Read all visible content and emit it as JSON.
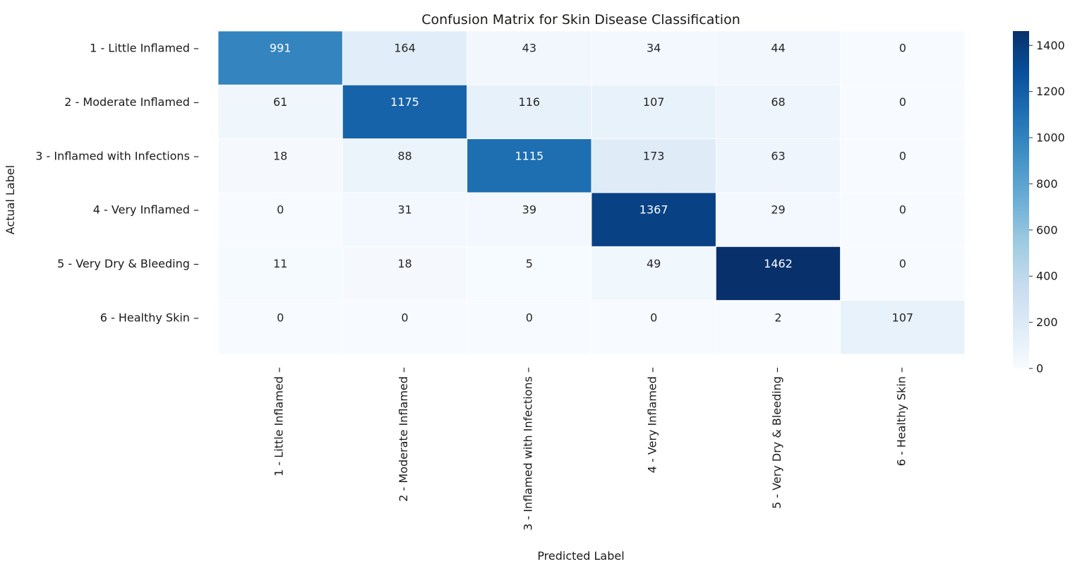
{
  "chart_data": {
    "type": "heatmap",
    "title": "Confusion Matrix for Skin Disease Classification",
    "xlabel": "Predicted Label",
    "ylabel": "Actual Label",
    "row_labels": [
      "1 - Little Inflamed",
      "2 - Moderate Inflamed",
      "3 - Inflamed with Infections",
      "4 - Very Inflamed",
      "5 - Very Dry & Bleeding",
      "6 - Healthy Skin"
    ],
    "col_labels": [
      "1 - Little Inflamed",
      "2 - Moderate Inflamed",
      "3 - Inflamed with Infections",
      "4 - Very Inflamed",
      "5 - Very Dry & Bleeding",
      "6 - Healthy Skin"
    ],
    "values": [
      [
        991,
        164,
        43,
        34,
        44,
        0
      ],
      [
        61,
        1175,
        116,
        107,
        68,
        0
      ],
      [
        18,
        88,
        1115,
        173,
        63,
        0
      ],
      [
        0,
        31,
        39,
        1367,
        29,
        0
      ],
      [
        11,
        18,
        5,
        49,
        1462,
        0
      ],
      [
        0,
        0,
        0,
        0,
        2,
        107
      ]
    ],
    "colormap": "Blues",
    "vmin": 0,
    "vmax": 1462,
    "colorbar_ticks": [
      0,
      200,
      400,
      600,
      800,
      1000,
      1200,
      1400
    ],
    "colorbar_tick_labels": [
      "0",
      "200",
      "400",
      "600",
      "800",
      "1000",
      "1200",
      "1400"
    ]
  }
}
